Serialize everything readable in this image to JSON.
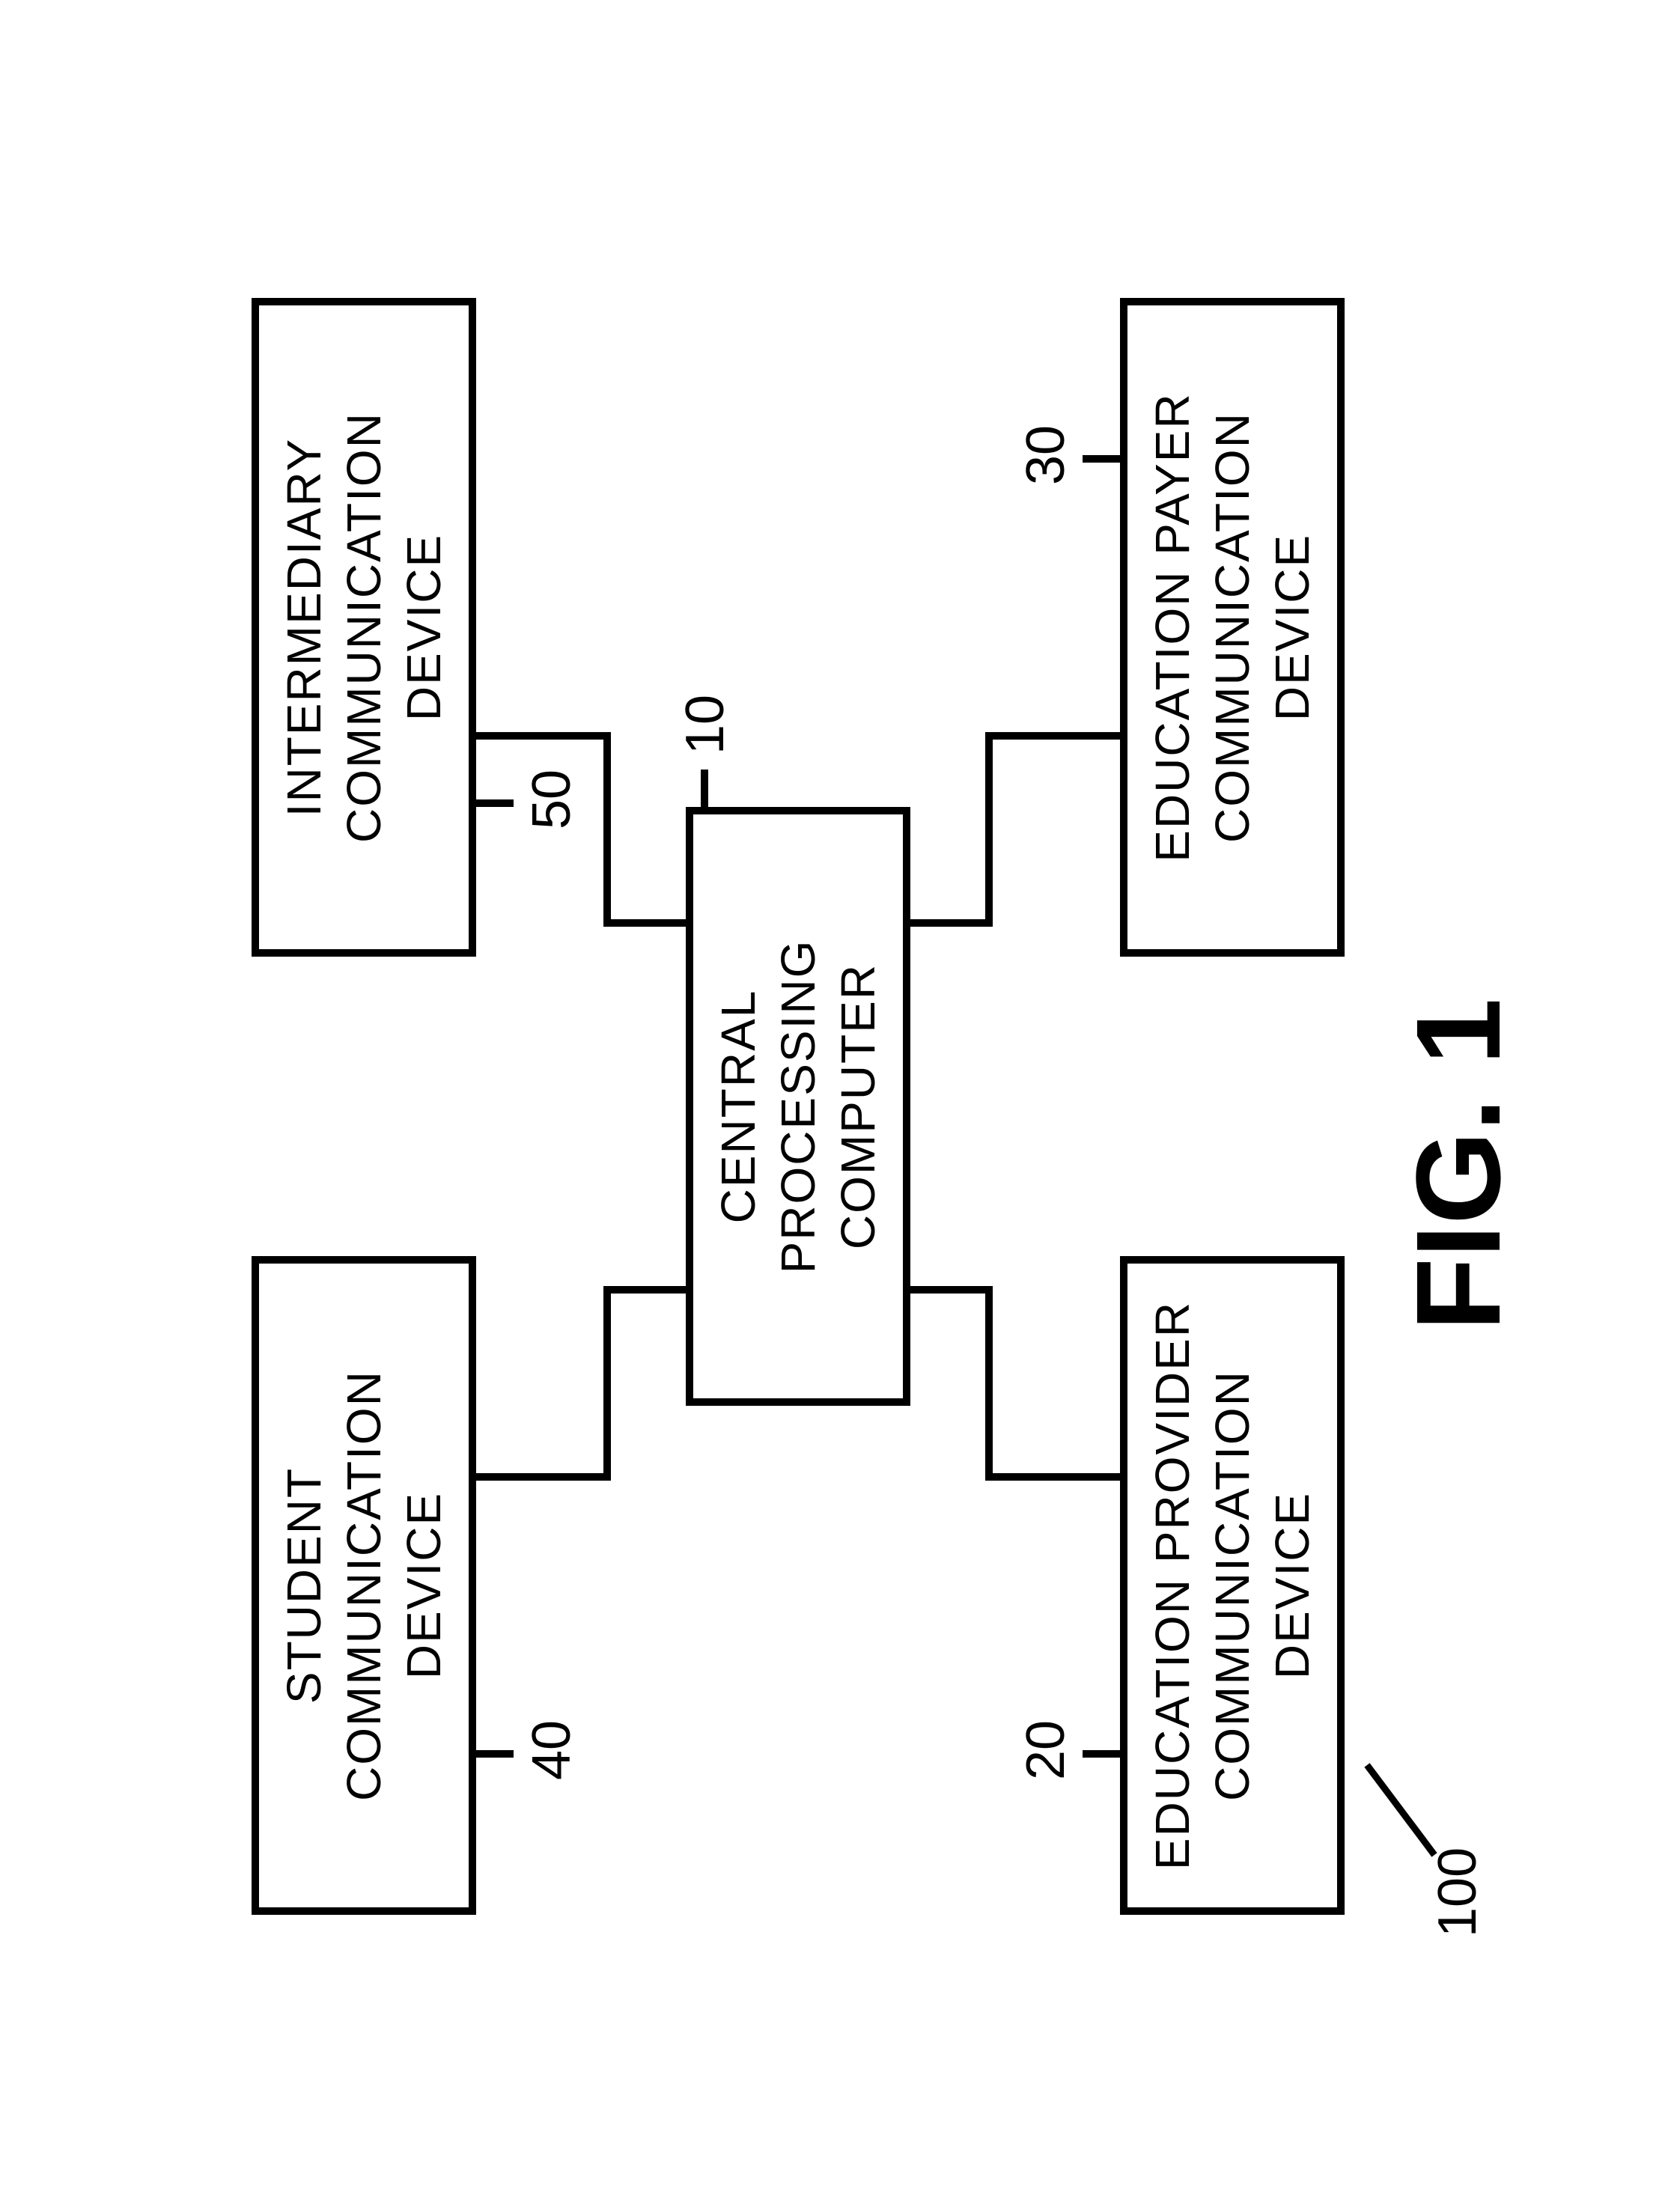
{
  "type": "block-diagram",
  "figure_label": "FIG. 1",
  "system_ref": "100",
  "stroke_color": "#000000",
  "background_color": "#ffffff",
  "border_width": 10,
  "font_family": "Arial Narrow",
  "label_fontsize": 64,
  "ref_fontsize": 72,
  "fig_fontsize": 160,
  "boxes": {
    "central": {
      "label": "CENTRAL PROCESSING\nCOMPUTER",
      "ref": "10"
    },
    "student": {
      "label": "STUDENT\nCOMMUNICATION DEVICE",
      "ref": "40"
    },
    "intermediary": {
      "label": "INTERMEDIARY\nCOMMUNICATION DEVICE",
      "ref": "50"
    },
    "provider": {
      "label": "EDUCATION PROVIDER\nCOMMUNICATION DEVICE",
      "ref": "20"
    },
    "payer": {
      "label": "EDUCATION PAYER\nCOMMUNICATION DEVICE",
      "ref": "30"
    }
  }
}
